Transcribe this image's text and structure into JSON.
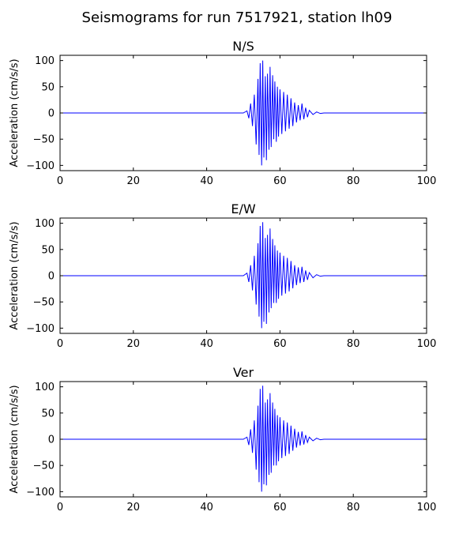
{
  "figure": {
    "suptitle": "Seismograms for run 7517921, station lh09"
  },
  "colors": {
    "trace": "#0000ff",
    "axes": "#000000",
    "background": "#ffffff"
  },
  "chart_data": [
    {
      "type": "line",
      "title": "N/S",
      "xlabel": "",
      "ylabel": "Acceleration (cm/s/s)",
      "xlim": [
        0,
        100
      ],
      "ylim": [
        -110,
        110
      ],
      "xticks": [
        0,
        20,
        40,
        60,
        80,
        100
      ],
      "yticks": [
        100,
        50,
        0,
        -50,
        -100
      ],
      "grid": false,
      "series": [
        {
          "x": [
            0,
            50,
            51,
            51.5,
            52,
            52.5,
            53,
            53.5,
            54,
            54.3,
            54.6,
            55,
            55.3,
            55.6,
            56,
            56.3,
            56.6,
            57,
            57.3,
            57.6,
            58,
            58.3,
            58.6,
            59,
            59.3,
            59.6,
            60,
            60.5,
            61,
            61.5,
            62,
            62.5,
            63,
            63.5,
            64,
            64.5,
            65,
            65.5,
            66,
            66.5,
            67,
            67.5,
            68,
            69,
            70,
            71,
            72,
            100
          ],
          "y": [
            0,
            0,
            4,
            -10,
            18,
            -25,
            35,
            -60,
            65,
            -80,
            95,
            -100,
            100,
            -85,
            70,
            -90,
            75,
            -70,
            88,
            -65,
            72,
            -50,
            60,
            -55,
            50,
            -45,
            45,
            -40,
            40,
            -35,
            35,
            -30,
            28,
            -25,
            20,
            -18,
            15,
            -14,
            18,
            -12,
            10,
            -8,
            5,
            -3,
            2,
            -1,
            0,
            0
          ]
        }
      ]
    },
    {
      "type": "line",
      "title": "E/W",
      "xlabel": "",
      "ylabel": "Acceleration (cm/s/s)",
      "xlim": [
        0,
        100
      ],
      "ylim": [
        -110,
        110
      ],
      "xticks": [
        0,
        20,
        40,
        60,
        80,
        100
      ],
      "yticks": [
        100,
        50,
        0,
        -50,
        -100
      ],
      "grid": false,
      "series": [
        {
          "x": [
            0,
            50,
            51,
            51.5,
            52,
            52.5,
            53,
            53.5,
            54,
            54.3,
            54.6,
            55,
            55.3,
            55.6,
            56,
            56.3,
            56.6,
            57,
            57.3,
            57.6,
            58,
            58.3,
            58.6,
            59,
            59.3,
            59.6,
            60,
            60.5,
            61,
            61.5,
            62,
            62.5,
            63,
            63.5,
            64,
            64.5,
            65,
            65.5,
            66,
            66.5,
            67,
            67.5,
            68,
            69,
            70,
            71,
            72,
            100
          ],
          "y": [
            0,
            0,
            5,
            -12,
            20,
            -28,
            38,
            -55,
            62,
            -78,
            95,
            -100,
            102,
            -88,
            72,
            -92,
            78,
            -70,
            90,
            -62,
            70,
            -52,
            58,
            -52,
            48,
            -44,
            44,
            -38,
            38,
            -34,
            34,
            -30,
            28,
            -24,
            20,
            -18,
            16,
            -14,
            17,
            -12,
            10,
            -8,
            6,
            -4,
            2,
            -1,
            0,
            0
          ]
        }
      ]
    },
    {
      "type": "line",
      "title": "Ver",
      "xlabel": "",
      "ylabel": "Acceleration (cm/s/s)",
      "xlim": [
        0,
        100
      ],
      "ylim": [
        -110,
        110
      ],
      "xticks": [
        0,
        20,
        40,
        60,
        80,
        100
      ],
      "yticks": [
        100,
        50,
        0,
        -50,
        -100
      ],
      "grid": false,
      "series": [
        {
          "x": [
            0,
            50,
            51,
            51.5,
            52,
            52.5,
            53,
            53.5,
            54,
            54.3,
            54.6,
            55,
            55.3,
            55.6,
            56,
            56.3,
            56.6,
            57,
            57.3,
            57.6,
            58,
            58.3,
            58.6,
            59,
            59.3,
            59.6,
            60,
            60.5,
            61,
            61.5,
            62,
            62.5,
            63,
            63.5,
            64,
            64.5,
            65,
            65.5,
            66,
            66.5,
            67,
            67.5,
            68,
            69,
            70,
            71,
            72,
            100
          ],
          "y": [
            0,
            0,
            4,
            -11,
            19,
            -26,
            36,
            -58,
            64,
            -82,
            96,
            -100,
            102,
            -86,
            70,
            -88,
            76,
            -68,
            88,
            -64,
            70,
            -50,
            58,
            -50,
            46,
            -42,
            42,
            -36,
            36,
            -32,
            32,
            -28,
            26,
            -22,
            20,
            -16,
            14,
            -12,
            15,
            -10,
            8,
            -6,
            4,
            -3,
            2,
            -1,
            0,
            0
          ]
        }
      ]
    }
  ]
}
